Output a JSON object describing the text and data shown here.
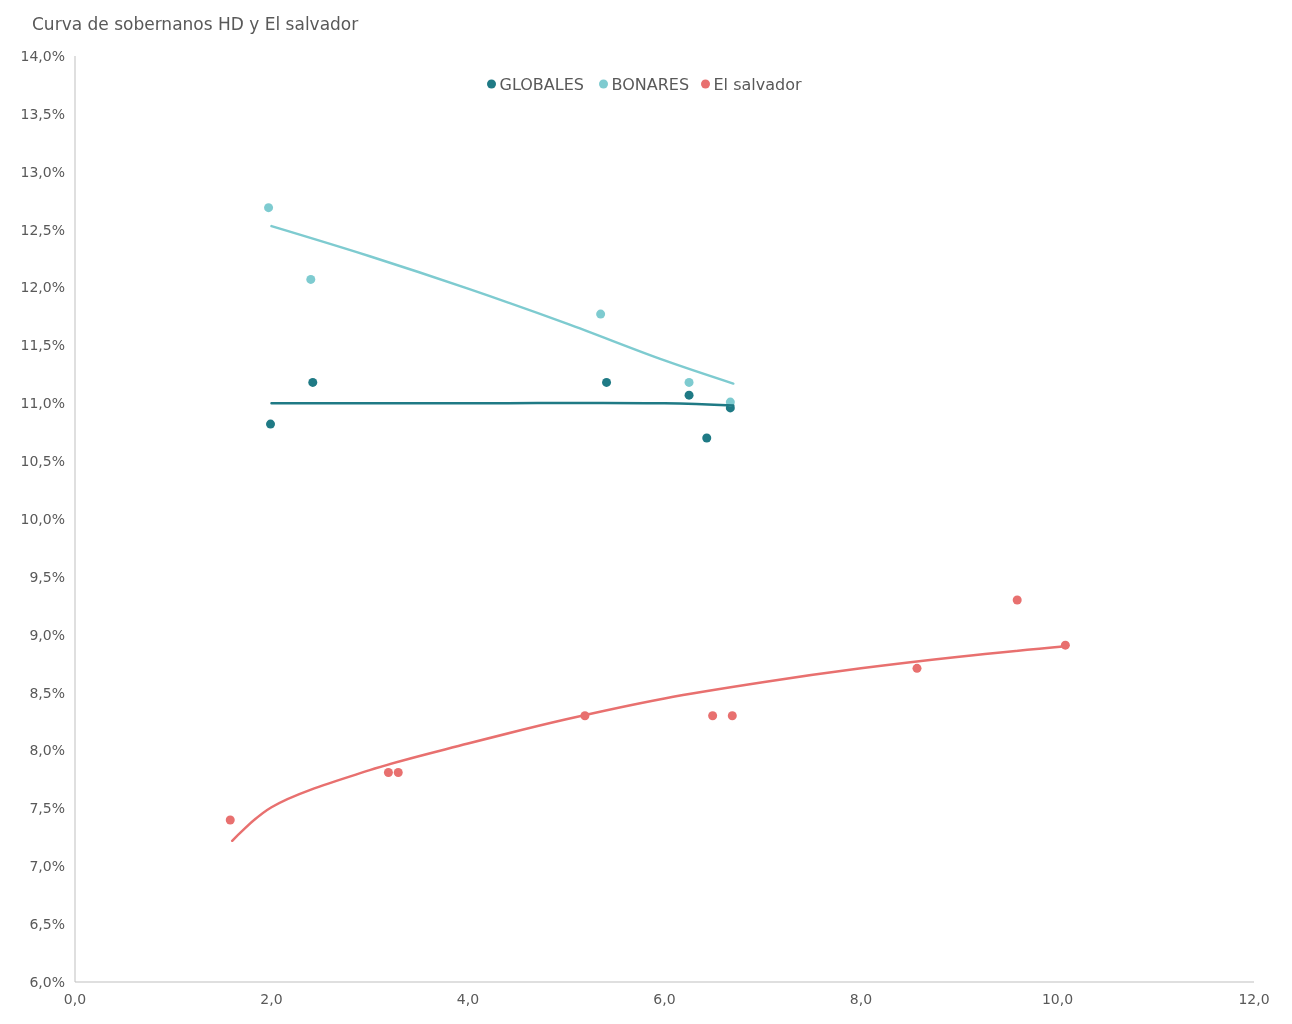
{
  "chart_data": {
    "type": "scatter",
    "title": "Curva de sobernanos HD y El salvador",
    "legend": "top",
    "marker": "circle",
    "grid": false,
    "xlim": [
      0,
      12
    ],
    "xticks": [
      {
        "value": 0,
        "label": "0,0"
      },
      {
        "value": 2,
        "label": "2,0"
      },
      {
        "value": 4,
        "label": "4,0"
      },
      {
        "value": 6,
        "label": "6,0"
      },
      {
        "value": 8,
        "label": "8,0"
      },
      {
        "value": 10,
        "label": "10,0"
      },
      {
        "value": 12,
        "label": "12,0"
      }
    ],
    "ylim": [
      6,
      14
    ],
    "yticks": [
      {
        "value": 6,
        "label": "6,0%"
      },
      {
        "value": 6.5,
        "label": "6,5%"
      },
      {
        "value": 7,
        "label": "7,0%"
      },
      {
        "value": 7.5,
        "label": "7,5%"
      },
      {
        "value": 8,
        "label": "8,0%"
      },
      {
        "value": 8.5,
        "label": "8,5%"
      },
      {
        "value": 9,
        "label": "9,0%"
      },
      {
        "value": 9.5,
        "label": "9,5%"
      },
      {
        "value": 10,
        "label": "10,0%"
      },
      {
        "value": 10.5,
        "label": "10,5%"
      },
      {
        "value": 11,
        "label": "11,0%"
      },
      {
        "value": 11.5,
        "label": "11,5%"
      },
      {
        "value": 12,
        "label": "12,0%"
      },
      {
        "value": 12.5,
        "label": "12,5%"
      },
      {
        "value": 13,
        "label": "13,0%"
      },
      {
        "value": 13.5,
        "label": "13,5%"
      },
      {
        "value": 14,
        "label": "14,0%"
      }
    ],
    "series": [
      {
        "name": "GLOBALES",
        "color": "#1f7a85",
        "x": [
          1.99,
          2.42,
          5.41,
          6.25,
          6.43,
          6.67
        ],
        "values": [
          10.82,
          11.18,
          11.18,
          11.07,
          10.7,
          10.96
        ]
      },
      {
        "name": "BONARES",
        "color": "#7ecbd0",
        "x": [
          1.97,
          2.4,
          5.35,
          6.25,
          6.67
        ],
        "values": [
          12.69,
          12.07,
          11.77,
          11.18,
          11.01
        ]
      },
      {
        "name": "El salvador",
        "color": "#e8706f",
        "x": [
          1.58,
          3.19,
          3.29,
          5.19,
          6.49,
          6.69,
          8.57,
          9.59,
          10.08
        ],
        "values": [
          7.4,
          7.81,
          7.81,
          8.3,
          8.3,
          8.3,
          8.71,
          9.3,
          8.91
        ]
      },
      {
        "type": "line",
        "marker": "none",
        "color": "#1f7a85",
        "x": [
          2,
          4,
          6,
          6.7
        ],
        "values": [
          11,
          11,
          11,
          10.98
        ]
      },
      {
        "type": "line",
        "marker": "none",
        "color": "#7ecbd0",
        "x": [
          2,
          3,
          4,
          5,
          6,
          6.7
        ],
        "values": [
          12.53,
          12.27,
          11.99,
          11.69,
          11.37,
          11.17
        ]
      },
      {
        "type": "line",
        "marker": "none",
        "color": "#e8706f",
        "x": [
          1.6,
          2,
          3,
          4,
          5,
          6,
          7,
          8,
          9,
          10.08
        ],
        "values": [
          7.22,
          7.51,
          7.83,
          8.06,
          8.27,
          8.45,
          8.59,
          8.71,
          8.81,
          8.9
        ]
      }
    ]
  }
}
